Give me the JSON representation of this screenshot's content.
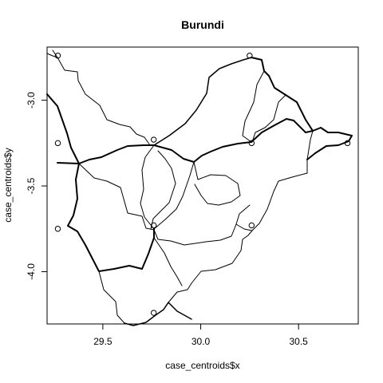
{
  "chart_data": {
    "type": "scatter",
    "title": "Burundi",
    "xlabel": "case_centroids$x",
    "ylabel": "case_centroids$y",
    "xlim": [
      29.215,
      30.805
    ],
    "ylim": [
      -4.305,
      -2.69
    ],
    "xticks": [
      {
        "value": 29.5,
        "label": "29.5"
      },
      {
        "value": 30.0,
        "label": "30.0"
      },
      {
        "value": 30.5,
        "label": "30.5"
      }
    ],
    "yticks": [
      {
        "value": -3.0,
        "label": "-3.0"
      },
      {
        "value": -3.5,
        "label": "-3.5"
      },
      {
        "value": -4.0,
        "label": "-4.0"
      }
    ],
    "points": [
      {
        "x": 29.27,
        "y": -2.74
      },
      {
        "x": 29.27,
        "y": -3.25
      },
      {
        "x": 29.27,
        "y": -3.75
      },
      {
        "x": 29.76,
        "y": -3.23
      },
      {
        "x": 29.76,
        "y": -3.73
      },
      {
        "x": 29.76,
        "y": -4.24
      },
      {
        "x": 30.25,
        "y": -2.74
      },
      {
        "x": 30.26,
        "y": -3.25
      },
      {
        "x": 30.26,
        "y": -3.73
      },
      {
        "x": 30.75,
        "y": -3.25
      }
    ],
    "grid": false,
    "legend": "none"
  }
}
